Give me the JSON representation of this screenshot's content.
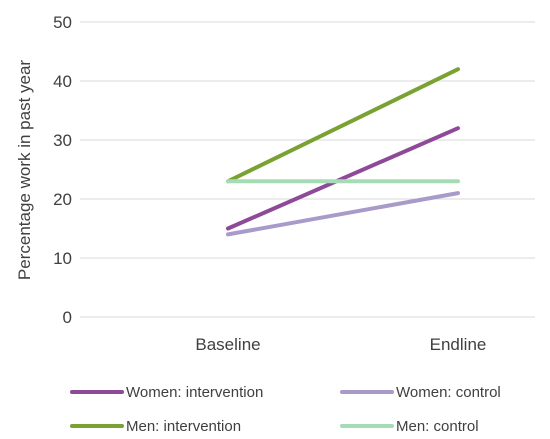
{
  "chart_data": {
    "type": "line",
    "categories": [
      "Baseline",
      "Endline"
    ],
    "ylabel": "Percentage work in past year",
    "xlabel": "",
    "ylim": [
      0,
      50
    ],
    "yticks": [
      "0",
      "10",
      "20",
      "30",
      "40",
      "50"
    ],
    "grid": true,
    "legend_position": "bottom",
    "series": [
      {
        "name": "Women: intervention",
        "values": [
          15,
          32
        ],
        "color": "#8e4a98"
      },
      {
        "name": "Women: control",
        "values": [
          14,
          21
        ],
        "color": "#a99ac9"
      },
      {
        "name": "Men: intervention",
        "values": [
          23,
          42
        ],
        "color": "#7aa232"
      },
      {
        "name": "Men: control",
        "values": [
          23,
          23
        ],
        "color": "#a5dcb6"
      }
    ]
  }
}
